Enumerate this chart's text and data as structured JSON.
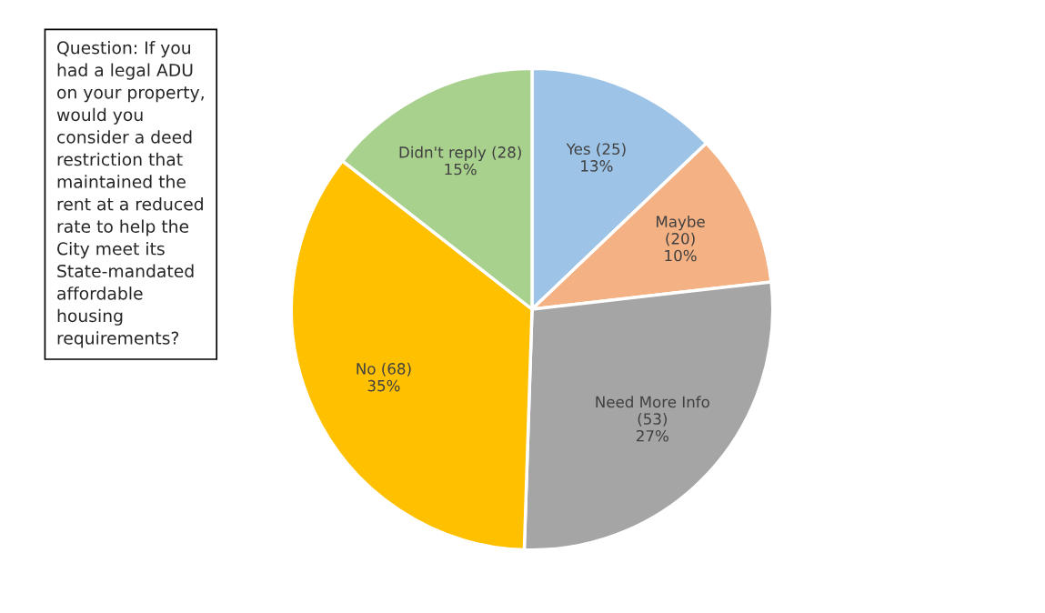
{
  "chart_data": {
    "type": "pie",
    "categories": [
      "Yes",
      "Maybe",
      "Need More Info",
      "No",
      "Didn't reply"
    ],
    "values": [
      25,
      20,
      53,
      68,
      28
    ],
    "value_labels": [
      " (25)\n13%",
      "\n(20)\n10%",
      "\n(53)\n27%",
      " (68)\n35%",
      " (28)\n15%"
    ],
    "colors": [
      "#9dc3e6",
      "#f4b183",
      "#a5a5a5",
      "#ffc000",
      "#a9d18e"
    ],
    "annotations": [
      "Question: If you\nhad a legal ADU\non your property,\nwould you\nconsider a deed\nrestriction that\nmaintained the\nrent at a reduced\nrate to help the\nCity meet its\nState-mandated\naffordable\nhousing\nrequirements?"
    ]
  }
}
